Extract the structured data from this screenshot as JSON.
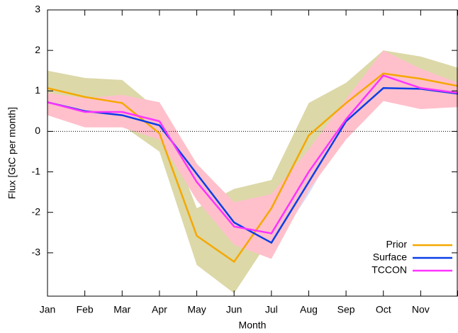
{
  "chart_data": {
    "type": "line",
    "x_label": "Month",
    "y_label": "Flux [GtC per month]",
    "categories": [
      "Jan",
      "Feb",
      "Mar",
      "Apr",
      "May",
      "Jun",
      "Jul",
      "Aug",
      "Sep",
      "Oct",
      "Nov",
      null
    ],
    "ylim": [
      -4.07,
      3
    ],
    "yticks": [
      -3,
      -2,
      -1,
      0,
      1,
      2,
      3
    ],
    "grid": false,
    "zero_line": true,
    "legend": "lower right",
    "series": [
      {
        "name": "Prior",
        "color": "#f5a800",
        "band_color": "#dcd8a8",
        "values": [
          1.07,
          0.85,
          0.7,
          -0.05,
          -2.58,
          -3.22,
          -1.9,
          -0.1,
          0.7,
          1.43,
          1.3,
          1.12
        ],
        "upper": [
          1.5,
          1.32,
          1.27,
          0.5,
          -1.9,
          -1.42,
          -1.2,
          0.7,
          1.2,
          2.0,
          1.85,
          1.57
        ],
        "lower": [
          0.62,
          0.4,
          0.15,
          -0.5,
          -3.3,
          -4.0,
          -2.6,
          -0.9,
          0.2,
          0.87,
          0.75,
          0.68
        ]
      },
      {
        "name": "Surface",
        "color": "#0a3ee8",
        "band_color": "#d8ddf8",
        "values": [
          0.72,
          0.5,
          0.4,
          0.15,
          -1.05,
          -2.25,
          -2.75,
          -1.25,
          0.25,
          1.07,
          1.05,
          0.93
        ],
        "upper": [
          0.85,
          0.65,
          0.55,
          0.3,
          -0.85,
          -1.95,
          -2.3,
          -1.0,
          0.45,
          1.2,
          1.2,
          1.1
        ],
        "lower": [
          0.6,
          0.35,
          0.25,
          0.0,
          -1.3,
          -2.5,
          -2.95,
          -1.55,
          0.05,
          0.9,
          0.85,
          0.78
        ]
      },
      {
        "name": "TCCON",
        "color": "#ff33ff",
        "band_color": "#ffc0cb",
        "values": [
          0.72,
          0.48,
          0.48,
          0.25,
          -1.25,
          -2.35,
          -2.52,
          -1.0,
          0.3,
          1.38,
          1.07,
          0.95
        ],
        "upper": [
          0.95,
          0.82,
          0.9,
          0.72,
          -0.8,
          -1.75,
          -1.55,
          -0.45,
          0.8,
          2.0,
          1.55,
          1.2
        ],
        "lower": [
          0.4,
          0.1,
          0.1,
          -0.2,
          -1.7,
          -2.8,
          -3.15,
          -1.45,
          -0.2,
          0.75,
          0.55,
          0.6
        ]
      }
    ]
  }
}
